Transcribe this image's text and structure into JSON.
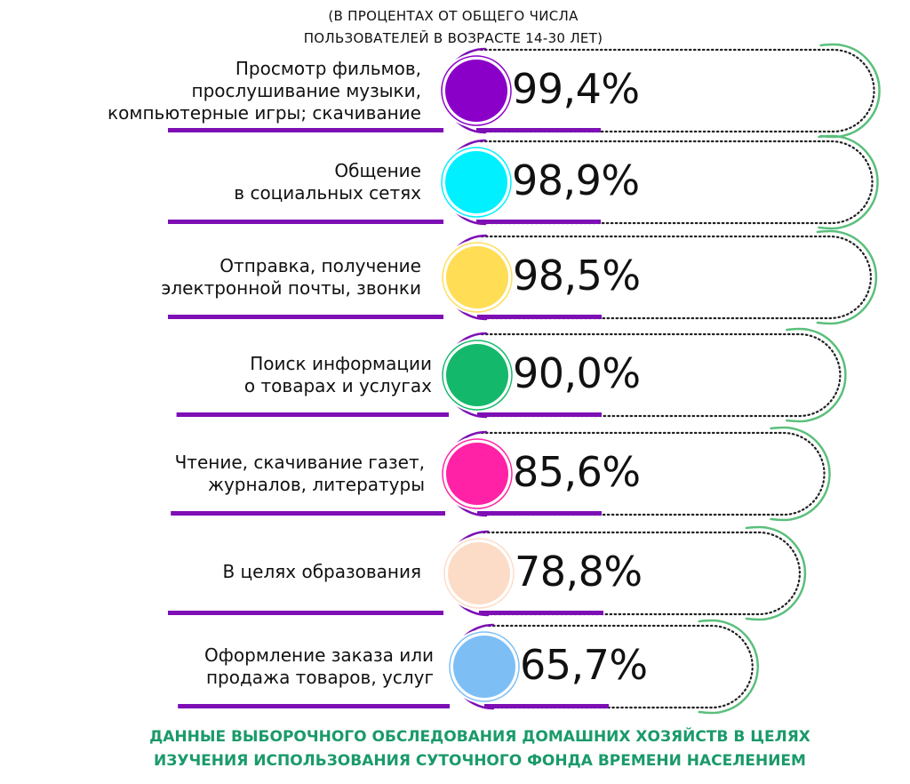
{
  "subtitle": {
    "line1": "(В ПРОЦЕНТАХ  ОТ ОБЩЕГО ЧИСЛА",
    "line2": "ПОЛЬЗОВАТЕЛЕЙ В ВОЗРАСТЕ 14-30 ЛЕТ)"
  },
  "footer": {
    "line1": "ДАННЫЕ ВЫБОРОЧНОГО ОБСЛЕДОВАНИЯ ДОМАШНИХ ХОЗЯЙСТВ В ЦЕЛЯХ",
    "line2": "ИЗУЧЕНИЯ ИСПОЛЬЗОВАНИЯ СУТОЧНОГО ФОНДА ВРЕМЕНИ НАСЕЛЕНИЕМ"
  },
  "colors": {
    "purple": "#7d0fb5",
    "green": "#5bbf7c",
    "dots": "#222222",
    "footer": "#1a9a6a"
  },
  "chart_data": {
    "type": "bar",
    "unit": "%",
    "categories": [
      [
        "Просмотр фильмов,",
        "прослушивание музыки,",
        "компьютерные игры; скачивание"
      ],
      [
        "Общение",
        "в социальных сетях"
      ],
      [
        "Отправка, получение",
        "электронной почты, звонки"
      ],
      [
        "Поиск информации",
        "о товарах и услугах"
      ],
      [
        "Чтение, скачивание газет,",
        "журналов, литературы"
      ],
      [
        "В целях образования"
      ],
      [
        "Оформление заказа или",
        "продажа  товаров, услуг"
      ]
    ],
    "values": [
      99.4,
      98.9,
      98.5,
      90.0,
      85.6,
      78.8,
      65.7
    ],
    "value_labels": [
      "99,4%",
      "98,9%",
      "98,5%",
      "90,0%",
      "85,6%",
      "78,8%",
      "65,7%"
    ],
    "circle_colors": [
      "#8a00c8",
      "#00f0ff",
      "#ffdd55",
      "#14b86a",
      "#ff21a6",
      "#fcdcc6",
      "#7dbff5"
    ]
  }
}
